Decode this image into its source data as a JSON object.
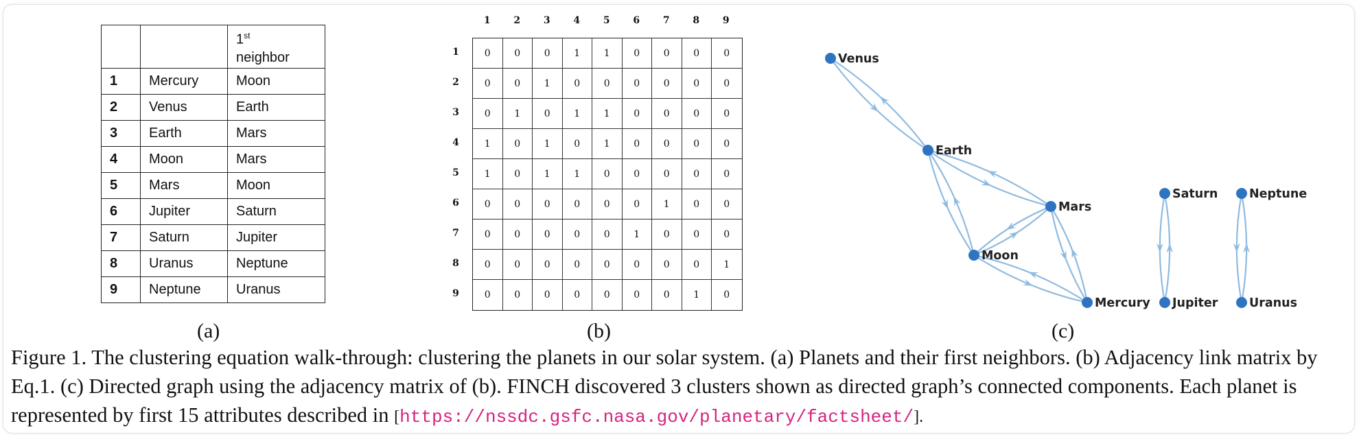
{
  "panel_a": {
    "header": [
      "",
      "",
      "neighbor"
    ],
    "header_first": "1",
    "header_sup": "st",
    "rows": [
      [
        "1",
        "Mercury",
        "Moon"
      ],
      [
        "2",
        "Venus",
        "Earth"
      ],
      [
        "3",
        "Earth",
        "Mars"
      ],
      [
        "4",
        "Moon",
        "Mars"
      ],
      [
        "5",
        "Mars",
        "Moon"
      ],
      [
        "6",
        "Jupiter",
        "Saturn"
      ],
      [
        "7",
        "Saturn",
        "Jupiter"
      ],
      [
        "8",
        "Uranus",
        "Neptune"
      ],
      [
        "9",
        "Neptune",
        "Uranus"
      ]
    ],
    "label": "(a)"
  },
  "panel_b": {
    "col_headers": [
      "1",
      "2",
      "3",
      "4",
      "5",
      "6",
      "7",
      "8",
      "9"
    ],
    "row_headers": [
      "1",
      "2",
      "3",
      "4",
      "5",
      "6",
      "7",
      "8",
      "9"
    ],
    "matrix": [
      [
        0,
        0,
        0,
        1,
        1,
        0,
        0,
        0,
        0
      ],
      [
        0,
        0,
        1,
        0,
        0,
        0,
        0,
        0,
        0
      ],
      [
        0,
        1,
        0,
        1,
        1,
        0,
        0,
        0,
        0
      ],
      [
        1,
        0,
        1,
        0,
        1,
        0,
        0,
        0,
        0
      ],
      [
        1,
        0,
        1,
        1,
        0,
        0,
        0,
        0,
        0
      ],
      [
        0,
        0,
        0,
        0,
        0,
        0,
        1,
        0,
        0
      ],
      [
        0,
        0,
        0,
        0,
        0,
        1,
        0,
        0,
        0
      ],
      [
        0,
        0,
        0,
        0,
        0,
        0,
        0,
        0,
        1
      ],
      [
        0,
        0,
        0,
        0,
        0,
        0,
        0,
        1,
        0
      ]
    ],
    "label": "(b)"
  },
  "panel_c": {
    "nodes": [
      "Venus",
      "Earth",
      "Mars",
      "Moon",
      "Mercury",
      "Saturn",
      "Jupiter",
      "Neptune",
      "Uranus"
    ],
    "edges": [
      [
        "Venus",
        "Earth"
      ],
      [
        "Earth",
        "Venus"
      ],
      [
        "Earth",
        "Mars"
      ],
      [
        "Mars",
        "Earth"
      ],
      [
        "Earth",
        "Moon"
      ],
      [
        "Moon",
        "Earth"
      ],
      [
        "Moon",
        "Mars"
      ],
      [
        "Mars",
        "Moon"
      ],
      [
        "Mars",
        "Mercury"
      ],
      [
        "Mercury",
        "Mars"
      ],
      [
        "Moon",
        "Mercury"
      ],
      [
        "Mercury",
        "Moon"
      ],
      [
        "Saturn",
        "Jupiter"
      ],
      [
        "Jupiter",
        "Saturn"
      ],
      [
        "Neptune",
        "Uranus"
      ],
      [
        "Uranus",
        "Neptune"
      ]
    ],
    "node_color": "#2f74c0",
    "edge_color": "#8fbbe0",
    "label": "(c)"
  },
  "caption": {
    "text": "Figure 1. The clustering equation walk-through: clustering the planets in our solar system. (a) Planets and their first neighbors. (b) Adjacency link matrix by Eq.1. (c) Directed graph using the adjacency matrix of (b). FINCH discovered 3 clusters shown as directed graph’s connected components. Each planet is represented by first 15 attributes described in ",
    "open": "[",
    "url": "https://nssdc.gsfc.nasa.gov/planetary/factsheet/",
    "close": "]."
  }
}
